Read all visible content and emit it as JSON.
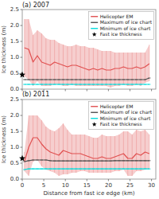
{
  "chart_data": [
    {
      "type": "line",
      "title": "(a) 2007",
      "x": [
        0.5,
        1.5,
        2.5,
        3.5,
        4.5,
        5.5,
        6.5,
        7.5,
        8.5,
        9.5,
        10.5,
        11.5,
        12.5,
        13.5,
        14.5,
        15.5,
        16.5,
        17.5,
        18.5,
        19.5,
        20.5,
        21.5,
        22.5,
        23.5,
        24.5,
        25.5,
        26.5,
        27.5,
        28.5,
        29.5
      ],
      "series": [
        {
          "name": "Helicopter EM",
          "color": "#e05050",
          "values": [
            1.3,
            1.25,
            0.85,
            1.05,
            0.85,
            0.8,
            0.75,
            0.85,
            0.8,
            0.75,
            0.7,
            0.75,
            0.75,
            0.7,
            0.65,
            0.6,
            0.65,
            0.6,
            0.65,
            0.6,
            0.6,
            0.65,
            0.65,
            0.7,
            0.65,
            0.65,
            0.7,
            0.65,
            0.7,
            0.8
          ],
          "upper": [
            2.2,
            2.2,
            1.7,
            1.85,
            1.75,
            1.6,
            1.55,
            1.55,
            1.45,
            1.4,
            1.35,
            1.35,
            1.4,
            1.35,
            1.35,
            1.3,
            1.3,
            1.25,
            1.2,
            1.2,
            1.2,
            1.15,
            1.15,
            1.15,
            1.15,
            1.15,
            1.15,
            1.15,
            1.15,
            1.4
          ],
          "lower": [
            0.4,
            0.3,
            0.1,
            0.25,
            0.1,
            0.1,
            0.1,
            0.15,
            0.15,
            0.1,
            0.1,
            0.15,
            0.1,
            0.1,
            0.1,
            0.1,
            0.1,
            0.1,
            0.1,
            0.1,
            0.05,
            0.1,
            0.1,
            0.15,
            0.1,
            0.1,
            0.15,
            0.1,
            0.2,
            0.25
          ]
        },
        {
          "name": "Maximum of ice chart",
          "color": "#505050",
          "marker": "hline",
          "values": [
            0.3,
            0.3,
            0.3,
            0.3,
            0.3,
            0.3,
            0.3,
            0.3,
            0.3,
            0.3,
            0.3,
            0.3,
            0.3,
            0.3,
            0.3,
            0.3,
            0.3,
            0.3,
            0.3,
            0.3,
            0.3,
            0.3,
            0.3,
            0.3,
            0.3,
            0.3,
            0.3,
            0.3,
            0.3,
            0.35
          ]
        },
        {
          "name": "Minimum of ice chart",
          "color": "#00dddd",
          "marker": "hline",
          "values": [
            0.15,
            0.15,
            0.15,
            0.15,
            0.15,
            0.15,
            0.15,
            0.15,
            0.15,
            0.15,
            0.15,
            0.15,
            0.15,
            0.15,
            0.15,
            0.15,
            0.15,
            0.15,
            0.15,
            0.15,
            0.15,
            0.15,
            0.15,
            0.15,
            0.15,
            0.15,
            0.15,
            0.15,
            0.15,
            0.15
          ]
        },
        {
          "name": "Fast ice thickness",
          "type": "scatter",
          "marker": "star",
          "color": "#000000",
          "x": [
            0
          ],
          "values": [
            0.45
          ]
        }
      ],
      "xlim": [
        0,
        31
      ],
      "ylim": [
        0.0,
        2.5
      ],
      "xticks": [
        0,
        5,
        10,
        15,
        20,
        25,
        30
      ],
      "yticks": [
        {
          "value": 0,
          "label": "0.0"
        },
        0.5,
        {
          "value": 1,
          "label": "1.0"
        },
        1.5,
        {
          "value": 2,
          "label": "2.0"
        },
        2.5
      ],
      "ylabel": "Ice thickness (m)",
      "legend": "upper right",
      "tick_labels": "y"
    },
    {
      "type": "line",
      "title": "(b) 2011",
      "x": [
        0.5,
        1.5,
        2.5,
        3.5,
        4.5,
        5.5,
        6.5,
        7.5,
        8.5,
        9.5,
        10.5,
        11.5,
        12.5,
        13.5,
        14.5,
        15.5,
        16.5,
        17.5,
        18.5,
        19.5,
        20.5,
        21.5,
        22.5,
        23.5,
        24.5,
        25.5,
        26.5,
        27.5,
        28.5,
        29.5
      ],
      "series": [
        {
          "name": "Helicopter EM",
          "color": "#e05050",
          "values": [
            0.55,
            1.0,
            1.3,
            1.3,
            1.1,
            0.95,
            0.85,
            0.8,
            0.75,
            0.9,
            0.85,
            0.8,
            0.8,
            0.8,
            0.75,
            0.7,
            0.65,
            0.65,
            0.7,
            0.65,
            0.65,
            0.7,
            0.75,
            0.8,
            0.65,
            0.65,
            0.8,
            0.75,
            0.85,
            0.8
          ],
          "upper": [
            0.85,
            2.0,
            2.0,
            2.0,
            1.85,
            1.65,
            1.55,
            1.5,
            1.6,
            1.75,
            1.55,
            1.4,
            1.4,
            1.4,
            1.4,
            1.35,
            1.3,
            1.3,
            1.4,
            1.35,
            1.35,
            1.35,
            1.4,
            1.5,
            1.5,
            1.4,
            1.55,
            1.5,
            1.55,
            1.4
          ],
          "lower": [
            0.25,
            0.1,
            0.55,
            0.6,
            0.4,
            0.3,
            0.25,
            0.2,
            0.1,
            0.15,
            0.15,
            0.2,
            0.2,
            0.25,
            0.25,
            0.2,
            0.2,
            0.2,
            0.2,
            0.2,
            0.2,
            0.25,
            0.25,
            0.3,
            0.1,
            0.1,
            0.25,
            0.25,
            0.3,
            0.3
          ]
        },
        {
          "name": "Maximum of ice chart",
          "color": "#505050",
          "marker": "hline",
          "values": [
            0.55,
            0.58,
            0.6,
            0.6,
            0.6,
            0.6,
            0.58,
            0.57,
            0.57,
            0.57,
            0.57,
            0.57,
            0.57,
            0.57,
            0.57,
            0.57,
            0.57,
            0.57,
            0.57,
            0.57,
            0.57,
            0.58,
            0.58,
            0.58,
            0.58,
            0.58,
            0.58,
            0.58,
            0.58,
            0.58
          ]
        },
        {
          "name": "Minimum of ice chart",
          "color": "#00dddd",
          "marker": "hline",
          "values": [
            0.3,
            0.32,
            0.32,
            0.32,
            0.32,
            0.32,
            0.32,
            0.32,
            0.32,
            0.32,
            0.32,
            0.32,
            0.32,
            0.32,
            0.32,
            0.32,
            0.32,
            0.32,
            0.32,
            0.32,
            0.32,
            0.32,
            0.32,
            0.32,
            0.32,
            0.32,
            0.32,
            0.32,
            0.32,
            0.32
          ]
        },
        {
          "name": "Fast ice thickness",
          "type": "scatter",
          "marker": "star",
          "color": "#000000",
          "x": [
            0
          ],
          "values": [
            0.65
          ]
        }
      ],
      "xlim": [
        0,
        31
      ],
      "ylim": [
        0.0,
        2.5
      ],
      "xticks": [
        0,
        5,
        10,
        15,
        20,
        25,
        30
      ],
      "yticks": [
        {
          "value": 0,
          "label": "0.0"
        },
        0.5,
        {
          "value": 1,
          "label": "1.0"
        },
        1.5,
        {
          "value": 2,
          "label": "2.0"
        },
        2.5
      ],
      "xlabel": "Distance from fast ice edge (km)",
      "ylabel": "Ice thickness (m)",
      "legend": "upper right"
    }
  ]
}
